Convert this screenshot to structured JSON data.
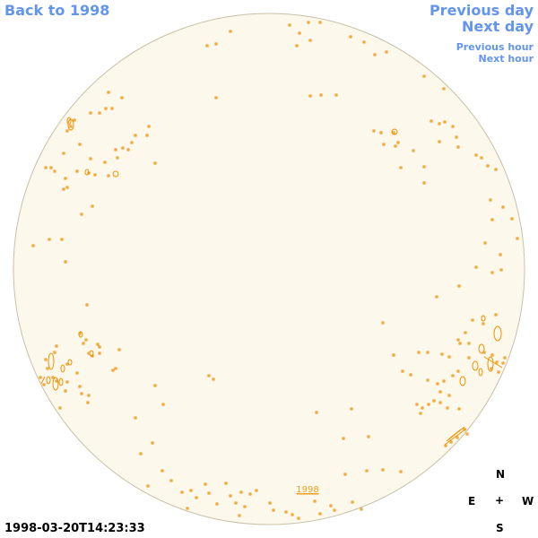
{
  "nav": {
    "back": "Back to 1998",
    "previous_day": "Previous day",
    "next_day": "Next day",
    "previous_hour": "Previous hour",
    "next_hour": "Next hour"
  },
  "disk": {
    "center_label": "1998",
    "fill_color": "#fdf8ec",
    "contour_color": "#f09000",
    "label_color": "#f0a020"
  },
  "timestamp": "1998-03-20T14:23:33",
  "compass": {
    "north": "N",
    "east": "E",
    "center": "+",
    "west": "W",
    "south": "S"
  },
  "colors": {
    "link": "#6495ed"
  }
}
